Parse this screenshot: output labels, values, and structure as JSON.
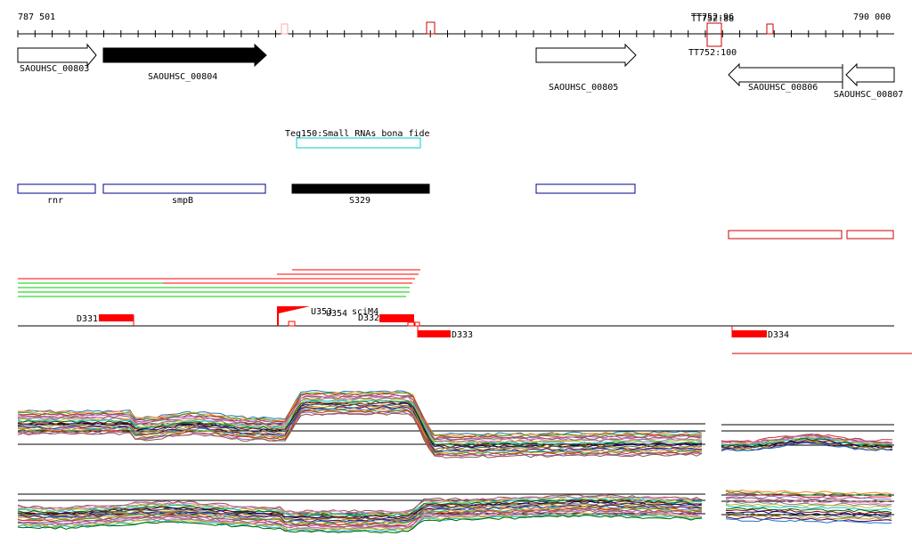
{
  "ruler": {
    "start_label": "787 501",
    "end_label": "790 000"
  },
  "tss_labels": [
    "TT752:96",
    "TT752:88",
    "TT752:100"
  ],
  "genes": [
    {
      "id": "SAOUHSC_00803"
    },
    {
      "id": "SAOUHSC_00804"
    },
    {
      "id": "SAOUHSC_00805"
    },
    {
      "id": "SAOUHSC_00806"
    },
    {
      "id": "SAOUHSC_00807"
    }
  ],
  "srna": {
    "label": "Teg150:Small RNAs bona fide"
  },
  "annotations": [
    {
      "label": "rnr"
    },
    {
      "label": "smpB"
    },
    {
      "label": "S329"
    }
  ],
  "features": [
    {
      "label": "D331"
    },
    {
      "label": "U353"
    },
    {
      "label": "U354"
    },
    {
      "label": "D332"
    },
    {
      "label": "D333"
    },
    {
      "label": "D334"
    },
    {
      "label": "sciM4"
    }
  ],
  "colors": {
    "gene_black": "#000000",
    "annotation_blue": "#00008b",
    "feature_red": "#ff0000",
    "srna_cyan": "#00cccc",
    "read_green": "#00cc00"
  }
}
